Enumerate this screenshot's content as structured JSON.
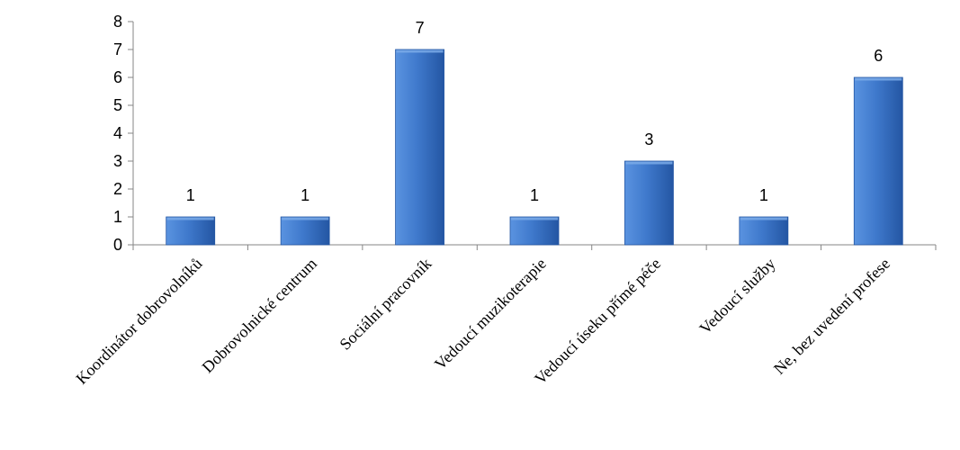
{
  "chart_data": {
    "type": "bar",
    "categories": [
      "Koordinátor dobrovolníků",
      "Dobrovolnické centrum",
      "Sociální pracovník",
      "Vedoucí muzikoterapie",
      "Vedoucí úseku přímé péče",
      "Vedoucí služby",
      "Ne, bez uvedení profese"
    ],
    "values": [
      1,
      1,
      7,
      1,
      3,
      1,
      6
    ],
    "ylim": [
      0,
      8
    ],
    "yticks": [
      "0",
      "1",
      "2",
      "3",
      "4",
      "5",
      "6",
      "7",
      "8"
    ],
    "data_labels": [
      "1",
      "1",
      "7",
      "1",
      "3",
      "1",
      "6"
    ],
    "title": "",
    "xlabel": "",
    "ylabel": "",
    "grid": false,
    "legend": "none",
    "colors": {
      "bar_light": "#5a93e0",
      "bar_main": "#3f79cc",
      "bar_dark": "#2456a3",
      "bar_top": "#7aaae8",
      "axis": "#868686"
    }
  }
}
